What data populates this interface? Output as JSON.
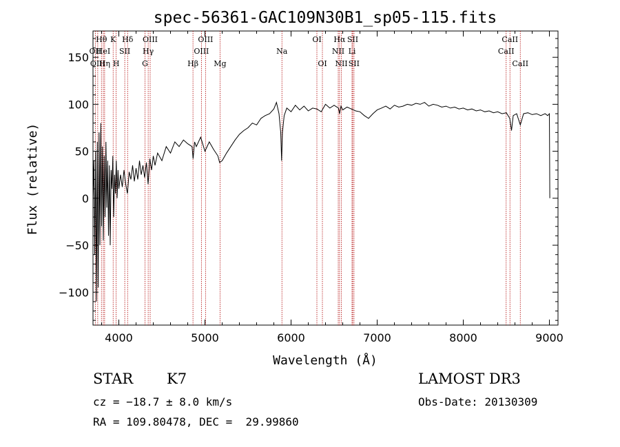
{
  "chart_data": {
    "type": "line",
    "title": "spec-56361-GAC109N30B1_sp05-115.fits",
    "xlabel": "Wavelength (Å)",
    "ylabel": "Flux (relative)",
    "xlim": [
      3700,
      9100
    ],
    "ylim": [
      -135,
      178
    ],
    "xticks": [
      4000,
      5000,
      6000,
      7000,
      8000,
      9000
    ],
    "yticks": [
      -100,
      -50,
      0,
      50,
      100,
      150
    ],
    "series": [
      {
        "name": "flux",
        "points": [
          [
            3700,
            0
          ],
          [
            3710,
            40
          ],
          [
            3720,
            -60
          ],
          [
            3730,
            50
          ],
          [
            3740,
            -110
          ],
          [
            3750,
            60
          ],
          [
            3760,
            -95
          ],
          [
            3770,
            70
          ],
          [
            3780,
            -50
          ],
          [
            3790,
            80
          ],
          [
            3800,
            -30
          ],
          [
            3810,
            55
          ],
          [
            3820,
            -45
          ],
          [
            3830,
            45
          ],
          [
            3840,
            -20
          ],
          [
            3850,
            60
          ],
          [
            3860,
            -10
          ],
          [
            3870,
            40
          ],
          [
            3880,
            -40
          ],
          [
            3890,
            35
          ],
          [
            3900,
            -50
          ],
          [
            3910,
            30
          ],
          [
            3920,
            10
          ],
          [
            3930,
            45
          ],
          [
            3940,
            -20
          ],
          [
            3950,
            25
          ],
          [
            3960,
            5
          ],
          [
            3970,
            40
          ],
          [
            3980,
            0
          ],
          [
            3990,
            30
          ],
          [
            4000,
            10
          ],
          [
            4020,
            25
          ],
          [
            4040,
            12
          ],
          [
            4060,
            30
          ],
          [
            4080,
            15
          ],
          [
            4100,
            5
          ],
          [
            4120,
            28
          ],
          [
            4140,
            20
          ],
          [
            4160,
            35
          ],
          [
            4180,
            18
          ],
          [
            4200,
            32
          ],
          [
            4220,
            20
          ],
          [
            4240,
            40
          ],
          [
            4260,
            25
          ],
          [
            4280,
            35
          ],
          [
            4300,
            22
          ],
          [
            4320,
            38
          ],
          [
            4340,
            15
          ],
          [
            4360,
            42
          ],
          [
            4380,
            30
          ],
          [
            4400,
            45
          ],
          [
            4420,
            35
          ],
          [
            4450,
            48
          ],
          [
            4500,
            40
          ],
          [
            4550,
            55
          ],
          [
            4600,
            48
          ],
          [
            4650,
            60
          ],
          [
            4700,
            55
          ],
          [
            4750,
            62
          ],
          [
            4800,
            58
          ],
          [
            4850,
            55
          ],
          [
            4862,
            42
          ],
          [
            4880,
            60
          ],
          [
            4900,
            55
          ],
          [
            4950,
            65
          ],
          [
            5000,
            50
          ],
          [
            5050,
            60
          ],
          [
            5100,
            52
          ],
          [
            5150,
            45
          ],
          [
            5170,
            38
          ],
          [
            5200,
            40
          ],
          [
            5250,
            48
          ],
          [
            5300,
            55
          ],
          [
            5350,
            62
          ],
          [
            5400,
            68
          ],
          [
            5450,
            72
          ],
          [
            5500,
            75
          ],
          [
            5550,
            80
          ],
          [
            5600,
            78
          ],
          [
            5650,
            85
          ],
          [
            5700,
            88
          ],
          [
            5750,
            90
          ],
          [
            5800,
            95
          ],
          [
            5830,
            102
          ],
          [
            5860,
            90
          ],
          [
            5880,
            70
          ],
          [
            5890,
            40
          ],
          [
            5900,
            70
          ],
          [
            5920,
            88
          ],
          [
            5950,
            96
          ],
          [
            6000,
            92
          ],
          [
            6050,
            99
          ],
          [
            6100,
            94
          ],
          [
            6150,
            98
          ],
          [
            6200,
            93
          ],
          [
            6250,
            96
          ],
          [
            6300,
            95
          ],
          [
            6350,
            92
          ],
          [
            6400,
            100
          ],
          [
            6450,
            96
          ],
          [
            6500,
            99
          ],
          [
            6550,
            96
          ],
          [
            6563,
            90
          ],
          [
            6580,
            98
          ],
          [
            6600,
            94
          ],
          [
            6650,
            97
          ],
          [
            6700,
            95
          ],
          [
            6750,
            93
          ],
          [
            6800,
            92
          ],
          [
            6850,
            88
          ],
          [
            6900,
            85
          ],
          [
            6950,
            90
          ],
          [
            7000,
            94
          ],
          [
            7050,
            96
          ],
          [
            7100,
            98
          ],
          [
            7150,
            95
          ],
          [
            7200,
            99
          ],
          [
            7250,
            97
          ],
          [
            7300,
            98
          ],
          [
            7350,
            100
          ],
          [
            7400,
            99
          ],
          [
            7450,
            101
          ],
          [
            7500,
            100
          ],
          [
            7550,
            102
          ],
          [
            7600,
            98
          ],
          [
            7650,
            100
          ],
          [
            7700,
            99
          ],
          [
            7750,
            97
          ],
          [
            7800,
            98
          ],
          [
            7850,
            96
          ],
          [
            7900,
            97
          ],
          [
            7950,
            95
          ],
          [
            8000,
            96
          ],
          [
            8050,
            94
          ],
          [
            8100,
            95
          ],
          [
            8150,
            93
          ],
          [
            8200,
            94
          ],
          [
            8250,
            92
          ],
          [
            8300,
            93
          ],
          [
            8350,
            91
          ],
          [
            8400,
            92
          ],
          [
            8450,
            90
          ],
          [
            8500,
            91
          ],
          [
            8540,
            85
          ],
          [
            8560,
            72
          ],
          [
            8580,
            88
          ],
          [
            8620,
            90
          ],
          [
            8662,
            78
          ],
          [
            8700,
            90
          ],
          [
            8750,
            91
          ],
          [
            8800,
            89
          ],
          [
            8850,
            90
          ],
          [
            8900,
            88
          ],
          [
            8950,
            90
          ],
          [
            8980,
            88
          ],
          [
            9000,
            90
          ],
          [
            9002,
            50
          ],
          [
            9005,
            0
          ]
        ]
      }
    ],
    "lines": [
      {
        "label": "Hθ",
        "x": 3798,
        "row": 1
      },
      {
        "label": "OII",
        "x": 3727,
        "row": 2
      },
      {
        "label": "OIII",
        "x": 3755,
        "row": 3
      },
      {
        "label": "HeI",
        "x": 3820,
        "row": 2
      },
      {
        "label": "K",
        "x": 3934,
        "row": 1
      },
      {
        "label": "Hη",
        "x": 3835,
        "row": 3
      },
      {
        "label": "H",
        "x": 3969,
        "row": 3
      },
      {
        "label": "SII",
        "x": 4069,
        "row": 2
      },
      {
        "label": "Hδ",
        "x": 4102,
        "row": 1
      },
      {
        "label": "OIII",
        "x": 4364,
        "row": 1
      },
      {
        "label": "Hγ",
        "x": 4341,
        "row": 2
      },
      {
        "label": "G",
        "x": 4304,
        "row": 3
      },
      {
        "label": "Hβ",
        "x": 4861,
        "row": 3
      },
      {
        "label": "OIII",
        "x": 5007,
        "row": 1
      },
      {
        "label": "OIII",
        "x": 4959,
        "row": 2
      },
      {
        "label": "Mg",
        "x": 5175,
        "row": 3
      },
      {
        "label": "Na",
        "x": 5894,
        "row": 2
      },
      {
        "label": "OI",
        "x": 6300,
        "row": 1
      },
      {
        "label": "OI",
        "x": 6364,
        "row": 3
      },
      {
        "label": "Hα",
        "x": 6563,
        "row": 1
      },
      {
        "label": "SII",
        "x": 6716,
        "row": 1
      },
      {
        "label": "NII",
        "x": 6548,
        "row": 2
      },
      {
        "label": "Li",
        "x": 6708,
        "row": 2
      },
      {
        "label": "NII",
        "x": 6584,
        "row": 3
      },
      {
        "label": "SII",
        "x": 6731,
        "row": 3
      },
      {
        "label": "CaII",
        "x": 8542,
        "row": 1
      },
      {
        "label": "CaII",
        "x": 8498,
        "row": 2
      },
      {
        "label": "CaII",
        "x": 8662,
        "row": 3
      }
    ]
  },
  "info": {
    "class": "STAR",
    "subclass": "K7",
    "survey": "LAMOST DR3",
    "cz": "cz = −18.7 ± 8.0 km/s",
    "obs_date": "Obs-Date: 20130309",
    "coords": "RA = 109.80478, DEC =  29.99860"
  },
  "colors": {
    "line": "#000000",
    "marker": "#b00000",
    "axis": "#000000"
  }
}
